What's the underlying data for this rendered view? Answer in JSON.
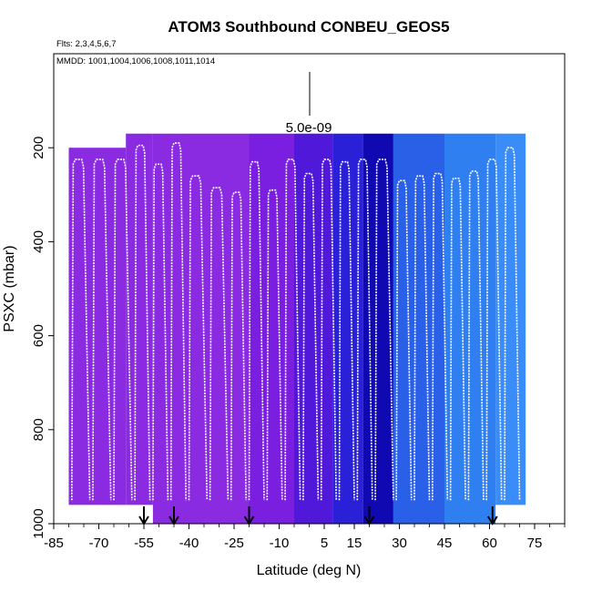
{
  "chart_data": {
    "type": "heatmap",
    "title": "ATOM3 Southbound CONBEU_GEOS5",
    "subtitle": "Flts: 2,3,4,5,6,7",
    "annotation": "MMDD: 1001,1004,1006,1008,1011,1014",
    "scale_label": "5.0e-09",
    "xlabel": "Latitude (deg N)",
    "ylabel": "PSXC (mbar)",
    "xlim": [
      -85,
      85
    ],
    "ylim": [
      1000,
      0
    ],
    "x_ticks": [
      -85,
      -70,
      -55,
      -40,
      -25,
      -10,
      5,
      15,
      30,
      45,
      60,
      75
    ],
    "y_ticks": [
      200,
      400,
      600,
      800,
      1000
    ],
    "grid": false,
    "arrow_latitudes": [
      -55,
      -45,
      -20,
      20,
      61
    ],
    "colors": {
      "purple": "#8a2be2",
      "violet": "#7a1fe0",
      "blue": "#2a20d8",
      "navy": "#1008b0",
      "sky": "#2f7ff0",
      "light": "#3a9bff",
      "profile": "#ffffff"
    },
    "curtain_sections": [
      {
        "lat_start": -80,
        "lat_end": -61,
        "p_top": 200,
        "p_bottom": 960,
        "color": "#8a2be2"
      },
      {
        "lat_start": -61,
        "lat_end": -52,
        "p_top": 170,
        "p_bottom": 960,
        "color": "#8a2be2"
      },
      {
        "lat_start": -52,
        "lat_end": -20,
        "p_top": 170,
        "p_bottom": 1000,
        "color": "#8a2be2"
      },
      {
        "lat_start": -20,
        "lat_end": -5,
        "p_top": 170,
        "p_bottom": 1000,
        "color": "#7a1fe0"
      },
      {
        "lat_start": -5,
        "lat_end": 8,
        "p_top": 170,
        "p_bottom": 1000,
        "color": "#5018d8"
      },
      {
        "lat_start": 8,
        "lat_end": 18,
        "p_top": 170,
        "p_bottom": 1000,
        "color": "#2a20d8"
      },
      {
        "lat_start": 18,
        "lat_end": 28,
        "p_top": 170,
        "p_bottom": 1000,
        "color": "#1008b0"
      },
      {
        "lat_start": 28,
        "lat_end": 45,
        "p_top": 170,
        "p_bottom": 1000,
        "color": "#2a5fe8"
      },
      {
        "lat_start": 45,
        "lat_end": 62,
        "p_top": 170,
        "p_bottom": 1000,
        "color": "#2f7ff0"
      },
      {
        "lat_start": 62,
        "lat_end": 72,
        "p_top": 170,
        "p_bottom": 960,
        "color": "#3a8df8"
      }
    ],
    "profiles": [
      {
        "lat_start": -79,
        "lat_end": -73,
        "p_top": 225
      },
      {
        "lat_start": -72,
        "lat_end": -66,
        "p_top": 225
      },
      {
        "lat_start": -65,
        "lat_end": -59,
        "p_top": 225
      },
      {
        "lat_start": -58,
        "lat_end": -53,
        "p_top": 195
      },
      {
        "lat_start": -52,
        "lat_end": -47,
        "p_top": 235
      },
      {
        "lat_start": -46,
        "lat_end": -41,
        "p_top": 190
      },
      {
        "lat_start": -40,
        "lat_end": -34,
        "p_top": 260
      },
      {
        "lat_start": -33,
        "lat_end": -27,
        "p_top": 285
      },
      {
        "lat_start": -26,
        "lat_end": -21,
        "p_top": 295
      },
      {
        "lat_start": -20,
        "lat_end": -15,
        "p_top": 230
      },
      {
        "lat_start": -14,
        "lat_end": -9,
        "p_top": 290
      },
      {
        "lat_start": -8,
        "lat_end": -3,
        "p_top": 225
      },
      {
        "lat_start": -2,
        "lat_end": 3,
        "p_top": 255
      },
      {
        "lat_start": 4,
        "lat_end": 9,
        "p_top": 225
      },
      {
        "lat_start": 10,
        "lat_end": 15,
        "p_top": 230
      },
      {
        "lat_start": 16,
        "lat_end": 21,
        "p_top": 225
      },
      {
        "lat_start": 22,
        "lat_end": 28,
        "p_top": 225
      },
      {
        "lat_start": 29,
        "lat_end": 34,
        "p_top": 270
      },
      {
        "lat_start": 35,
        "lat_end": 40,
        "p_top": 260
      },
      {
        "lat_start": 41,
        "lat_end": 46,
        "p_top": 255
      },
      {
        "lat_start": 47,
        "lat_end": 52,
        "p_top": 265
      },
      {
        "lat_start": 53,
        "lat_end": 58,
        "p_top": 250
      },
      {
        "lat_start": 59,
        "lat_end": 64,
        "p_top": 225
      },
      {
        "lat_start": 65,
        "lat_end": 70,
        "p_top": 200
      }
    ]
  }
}
